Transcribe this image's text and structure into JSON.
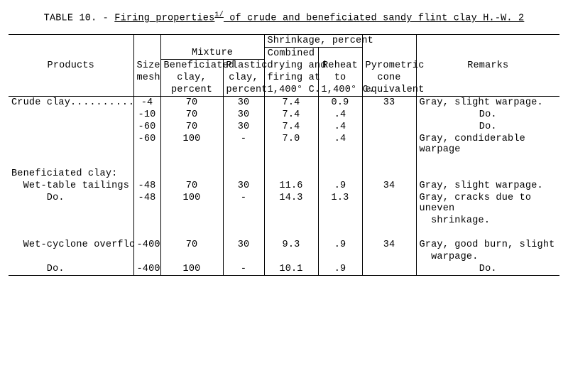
{
  "title": {
    "prefix": "TABLE 10. - ",
    "underlined": "Firing properties",
    "sup": "1/",
    "suffix": " of crude and beneficiated sandy flint clay H.-W. 2"
  },
  "headers": {
    "products": "Products",
    "size1": "Size",
    "size2": "mesh",
    "mixture": "Mixture",
    "benef1": "Beneficiated",
    "benef2": "clay,",
    "benef3": "percent",
    "plastic1": "Plastic",
    "plastic2": "clay,",
    "plastic3": "percent",
    "shrinkage": "Shrinkage, percent",
    "combined1": "Combined",
    "combined2": "drying and",
    "combined3": "firing at",
    "combined4": "1,400° C.",
    "reheat1": "Reheat",
    "reheat2": "to",
    "reheat3": "1,400° C.",
    "pce1": "Pyrometric",
    "pce2": "cone",
    "pce3": "equivalent",
    "remarks": "Remarks"
  },
  "rows": [
    {
      "product": "Crude clay",
      "leader": true,
      "size": "-4",
      "benef": "70",
      "plastic": "30",
      "combined": "7.4",
      "reheat": "0.9",
      "pce": "33",
      "remarks": "Gray, slight warpage."
    },
    {
      "product": "",
      "size": "-10",
      "benef": "70",
      "plastic": "30",
      "combined": "7.4",
      "reheat": ".4",
      "pce": "",
      "remarks_center": "Do."
    },
    {
      "product": "",
      "size": "-60",
      "benef": "70",
      "plastic": "30",
      "combined": "7.4",
      "reheat": ".4",
      "pce": "",
      "remarks_center": "Do."
    },
    {
      "product": "",
      "size": "-60",
      "benef": "100",
      "plastic": "-",
      "combined": "7.0",
      "reheat": ".4",
      "pce": "",
      "remarks": "Gray, condiderable warpage"
    },
    {
      "spacer": true
    },
    {
      "product": "Beneficiated clay:",
      "size": "",
      "benef": "",
      "plastic": "",
      "combined": "",
      "reheat": "",
      "pce": "",
      "remarks": ""
    },
    {
      "product": "  Wet-table tailings (clay)..",
      "size": "-48",
      "benef": "70",
      "plastic": "30",
      "combined": "11.6",
      "reheat": ".9",
      "pce": "34",
      "remarks": "Gray, slight warpage."
    },
    {
      "product": "      Do.",
      "size": "-48",
      "benef": "100",
      "plastic": "-",
      "combined": "14.3",
      "reheat": "1.3",
      "pce": "",
      "remarks": "Gray, cracks due to uneven"
    },
    {
      "product": "",
      "size": "",
      "benef": "",
      "plastic": "",
      "combined": "",
      "reheat": "",
      "pce": "",
      "remarks": "  shrinkage."
    },
    {
      "spacer": true
    },
    {
      "product": "  Wet-cyclone overflow (clay)",
      "size": "-400",
      "benef": "70",
      "plastic": "30",
      "combined": "9.3",
      "reheat": ".9",
      "pce": "34",
      "remarks": "Gray, good burn, slight"
    },
    {
      "product": "",
      "size": "",
      "benef": "",
      "plastic": "",
      "combined": "",
      "reheat": "",
      "pce": "",
      "remarks": "  warpage."
    },
    {
      "product": "      Do.",
      "size": "-400",
      "benef": "100",
      "plastic": "-",
      "combined": "10.1",
      "reheat": ".9",
      "pce": "",
      "remarks_center": "Do."
    }
  ]
}
